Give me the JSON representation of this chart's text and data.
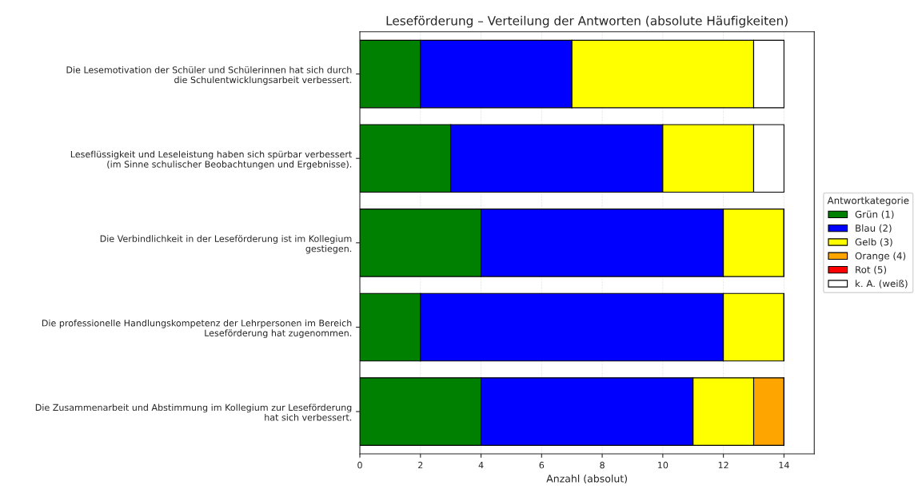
{
  "chart_data": {
    "type": "bar",
    "orientation": "horizontal",
    "stacked": true,
    "title": "Leseförderung – Verteilung der Antworten (absolute Häufigkeiten)",
    "xlabel": "Anzahl (absolut)",
    "legend_title": "Antwortkategorie",
    "categories": [
      "Die Lesemotivation der Schüler und Schülerinnen hat sich durch\ndie Schulentwicklungsarbeit verbessert.",
      "Leseflüssigkeit und Leseleistung haben sich spürbar verbessert\n(im Sinne schulischer Beobachtungen und Ergebnisse).",
      "Die Verbindlichkeit in der Leseförderung ist im Kollegium\ngestiegen.",
      "Die professionelle Handlungskompetenz der Lehrpersonen im Bereich\nLeseförderung hat zugenommen.",
      "Die Zusammenarbeit und Abstimmung im Kollegium zur Leseförderung\nhat sich verbessert."
    ],
    "series": [
      {
        "name": "Grün (1)",
        "color": "#008000",
        "values": [
          2,
          3,
          4,
          2,
          4
        ]
      },
      {
        "name": "Blau (2)",
        "color": "#0000ff",
        "values": [
          5,
          7,
          8,
          10,
          7
        ]
      },
      {
        "name": "Gelb (3)",
        "color": "#ffff00",
        "values": [
          6,
          3,
          2,
          2,
          2
        ]
      },
      {
        "name": "Orange (4)",
        "color": "#ffa500",
        "values": [
          0,
          0,
          0,
          0,
          1
        ]
      },
      {
        "name": "Rot (5)",
        "color": "#ff0000",
        "values": [
          0,
          0,
          0,
          0,
          0
        ]
      },
      {
        "name": "k. A. (weiß)",
        "color": "#ffffff",
        "values": [
          1,
          1,
          0,
          0,
          0
        ]
      }
    ],
    "xlim": [
      0,
      15
    ],
    "xticks": [
      0,
      2,
      4,
      6,
      8,
      10,
      12,
      14
    ],
    "grid": "x",
    "legend": "right"
  }
}
